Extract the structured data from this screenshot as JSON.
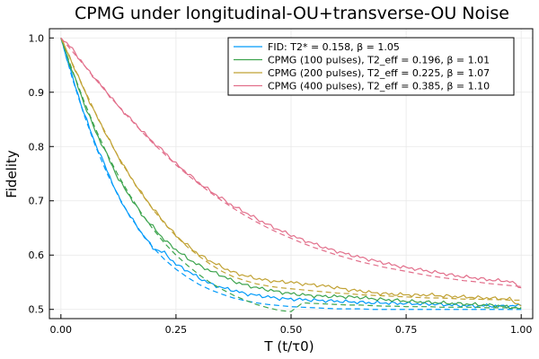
{
  "chart_data": {
    "type": "line",
    "title": "CPMG under longitudinal-OU+transverse-OU Noise",
    "xlabel": "T (t/τ0)",
    "ylabel": "Fidelity",
    "xlim": [
      -0.025,
      1.025
    ],
    "ylim": [
      0.483,
      1.017
    ],
    "xticks": [
      0.0,
      0.25,
      0.5,
      0.75,
      1.0
    ],
    "xtick_labels": [
      "0.00",
      "0.25",
      "0.50",
      "0.75",
      "1.00"
    ],
    "yticks": [
      0.5,
      0.6,
      0.7,
      0.8,
      0.9,
      1.0
    ],
    "ytick_labels": [
      "0.5",
      "0.6",
      "0.7",
      "0.8",
      "0.9",
      "1.0"
    ],
    "grid": true,
    "legend_position": "top-right",
    "x": [
      0.0,
      0.025,
      0.05,
      0.075,
      0.1,
      0.125,
      0.15,
      0.175,
      0.2,
      0.225,
      0.25,
      0.275,
      0.3,
      0.325,
      0.35,
      0.375,
      0.4,
      0.425,
      0.45,
      0.475,
      0.5,
      0.525,
      0.55,
      0.575,
      0.6,
      0.625,
      0.65,
      0.675,
      0.7,
      0.725,
      0.75,
      0.775,
      0.8,
      0.825,
      0.85,
      0.875,
      0.9,
      0.925,
      0.95,
      0.975,
      1.0
    ],
    "series": [
      {
        "name": "FID: T2* = 0.158, β = 1.05",
        "color": "#009AFA",
        "style": "simulated",
        "values": [
          1.0,
          0.928,
          0.862,
          0.805,
          0.757,
          0.707,
          0.672,
          0.641,
          0.613,
          0.604,
          0.583,
          0.571,
          0.558,
          0.547,
          0.54,
          0.535,
          0.529,
          0.526,
          0.523,
          0.52,
          0.519,
          0.518,
          0.517,
          0.516,
          0.515,
          0.514,
          0.513,
          0.512,
          0.512,
          0.511,
          0.511,
          0.51,
          0.51,
          0.509,
          0.508,
          0.507,
          0.506,
          0.507,
          0.506,
          0.506,
          0.507
        ]
      },
      {
        "name": "",
        "color": "#009AFA",
        "style": "fit",
        "values": [
          1.0,
          0.925,
          0.859,
          0.801,
          0.751,
          0.708,
          0.672,
          0.641,
          0.614,
          0.592,
          0.574,
          0.559,
          0.546,
          0.536,
          0.528,
          0.521,
          0.516,
          0.512,
          0.509,
          0.507,
          0.505,
          0.504,
          0.503,
          0.502,
          0.501,
          0.501,
          0.501,
          0.5,
          0.5,
          0.5,
          0.5,
          0.5,
          0.5,
          0.5,
          0.5,
          0.5,
          0.5,
          0.5,
          0.5,
          0.5,
          0.5
        ]
      },
      {
        "name": "CPMG (100 pulses), T2_eff = 0.196, β = 1.01",
        "color": "#3DA44E",
        "style": "simulated",
        "values": [
          1.0,
          0.938,
          0.88,
          0.828,
          0.785,
          0.74,
          0.708,
          0.675,
          0.652,
          0.628,
          0.61,
          0.594,
          0.581,
          0.571,
          0.562,
          0.552,
          0.545,
          0.54,
          0.536,
          0.532,
          0.529,
          0.527,
          0.525,
          0.524,
          0.524,
          0.523,
          0.522,
          0.52,
          0.518,
          0.517,
          0.515,
          0.514,
          0.513,
          0.512,
          0.511,
          0.51,
          0.509,
          0.508,
          0.507,
          0.504,
          0.502
        ]
      },
      {
        "name": "",
        "color": "#3DA44E",
        "style": "fit",
        "values": [
          1.0,
          0.94,
          0.884,
          0.833,
          0.787,
          0.746,
          0.71,
          0.677,
          0.648,
          0.622,
          0.6,
          0.581,
          0.564,
          0.549,
          0.537,
          0.526,
          0.517,
          0.509,
          0.503,
          0.498,
          0.496,
          0.512,
          0.511,
          0.51,
          0.509,
          0.508,
          0.508,
          0.507,
          0.506,
          0.506,
          0.505,
          0.505,
          0.505,
          0.504,
          0.504,
          0.504,
          0.504,
          0.503,
          0.503,
          0.503,
          0.503
        ]
      },
      {
        "name": "CPMG (200 pulses), T2_eff = 0.225, β = 1.07",
        "color": "#C1A234",
        "style": "simulated",
        "values": [
          1.0,
          0.953,
          0.905,
          0.86,
          0.82,
          0.78,
          0.746,
          0.714,
          0.686,
          0.66,
          0.636,
          0.618,
          0.601,
          0.589,
          0.578,
          0.568,
          0.562,
          0.557,
          0.553,
          0.551,
          0.55,
          0.547,
          0.545,
          0.543,
          0.54,
          0.536,
          0.534,
          0.531,
          0.529,
          0.528,
          0.527,
          0.526,
          0.527,
          0.525,
          0.524,
          0.523,
          0.522,
          0.521,
          0.52,
          0.519,
          0.506
        ]
      },
      {
        "name": "",
        "color": "#C1A234",
        "style": "fit",
        "values": [
          1.0,
          0.953,
          0.907,
          0.862,
          0.82,
          0.781,
          0.745,
          0.713,
          0.684,
          0.658,
          0.635,
          0.615,
          0.598,
          0.583,
          0.57,
          0.56,
          0.553,
          0.547,
          0.543,
          0.54,
          0.538,
          0.536,
          0.534,
          0.532,
          0.53,
          0.529,
          0.527,
          0.526,
          0.525,
          0.524,
          0.523,
          0.522,
          0.521,
          0.521,
          0.52,
          0.519,
          0.519,
          0.518,
          0.518,
          0.517,
          0.517
        ]
      },
      {
        "name": "CPMG (400 pulses), T2_eff = 0.385, β = 1.10",
        "color": "#E26F8B",
        "style": "simulated",
        "values": [
          1.0,
          0.98,
          0.95,
          0.925,
          0.9,
          0.874,
          0.852,
          0.83,
          0.808,
          0.79,
          0.768,
          0.751,
          0.733,
          0.718,
          0.704,
          0.69,
          0.679,
          0.667,
          0.656,
          0.646,
          0.637,
          0.628,
          0.621,
          0.613,
          0.607,
          0.601,
          0.596,
          0.591,
          0.586,
          0.581,
          0.577,
          0.574,
          0.57,
          0.567,
          0.563,
          0.56,
          0.558,
          0.555,
          0.553,
          0.552,
          0.54
        ]
      },
      {
        "name": "",
        "color": "#E26F8B",
        "style": "fit",
        "values": [
          1.0,
          0.975,
          0.95,
          0.924,
          0.899,
          0.874,
          0.851,
          0.828,
          0.806,
          0.786,
          0.766,
          0.748,
          0.731,
          0.715,
          0.7,
          0.686,
          0.673,
          0.661,
          0.65,
          0.64,
          0.631,
          0.622,
          0.614,
          0.607,
          0.6,
          0.594,
          0.588,
          0.583,
          0.578,
          0.574,
          0.57,
          0.566,
          0.562,
          0.559,
          0.556,
          0.553,
          0.551,
          0.548,
          0.546,
          0.544,
          0.542
        ]
      }
    ]
  }
}
